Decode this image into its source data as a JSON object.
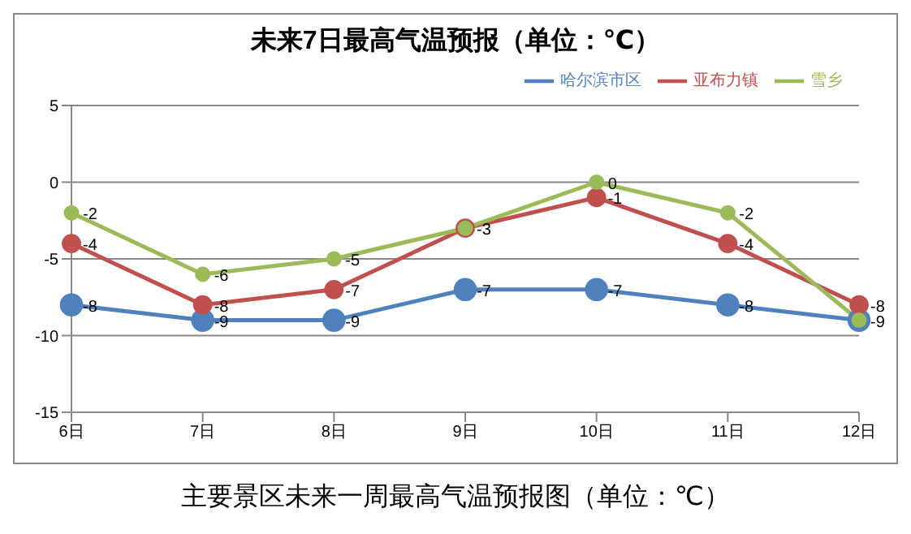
{
  "chart_data": {
    "type": "line",
    "title": "未来7日最高气温预报（单位：℃）",
    "categories": [
      "6日",
      "7日",
      "8日",
      "9日",
      "10日",
      "11日",
      "12日"
    ],
    "series": [
      {
        "name": "哈尔滨市区",
        "color": "#4f81bd",
        "values": [
          -8,
          -9,
          -9,
          -7,
          -7,
          -8,
          -9
        ],
        "value_labels": [
          "-8",
          "-9",
          "-9",
          "-7",
          "-7",
          "-8",
          "-9"
        ]
      },
      {
        "name": "亚布力镇",
        "color": "#c0504d",
        "values": [
          -4,
          -8,
          -7,
          -3,
          -1,
          -4,
          -8
        ],
        "value_labels": [
          "-4",
          "-8",
          "-7",
          null,
          "-1",
          "-4",
          "-8"
        ]
      },
      {
        "name": "雪乡",
        "color": "#9bbb59",
        "values": [
          -2,
          -6,
          -5,
          -3,
          0,
          -2,
          -9
        ],
        "value_labels": [
          "-2",
          "-6",
          "-5",
          "-3",
          "0",
          "-2",
          null
        ]
      }
    ],
    "ylim": [
      -15,
      5
    ],
    "yticks": [
      -15,
      -10,
      -5,
      0,
      5
    ],
    "grid": "y",
    "legend": "top right",
    "marker": "circle",
    "line_style": "solid",
    "annotations": [
      "主要景区未来一周最高气温预报图（单位：℃）"
    ]
  }
}
